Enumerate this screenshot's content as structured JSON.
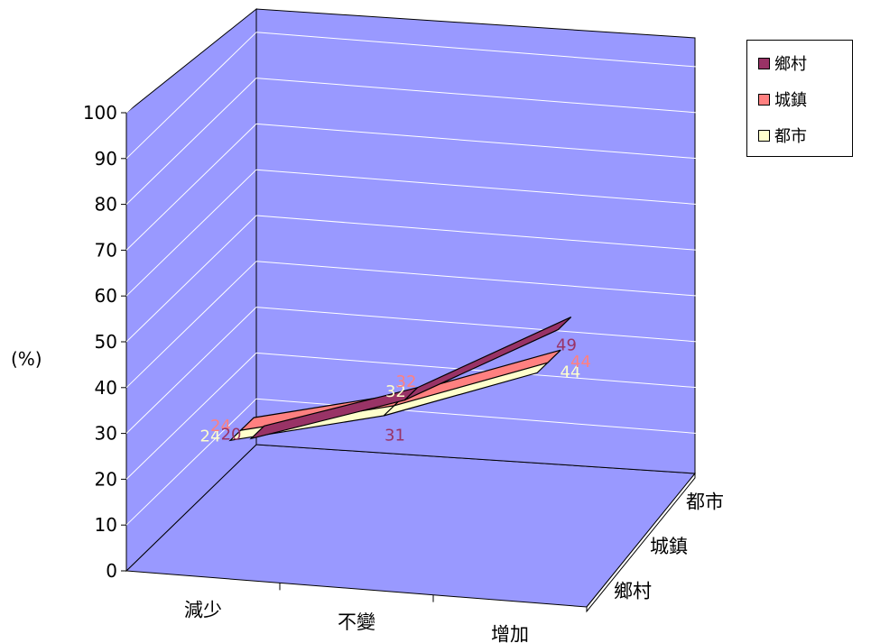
{
  "chart_data": {
    "type": "line",
    "style": "3d-ribbon",
    "categories": [
      "減少",
      "不變",
      "增加"
    ],
    "depth_categories": [
      "鄉村",
      "城鎮",
      "都市"
    ],
    "ylabel": "(%)",
    "ylim": [
      0,
      100
    ],
    "yticks": [
      "0",
      "10",
      "20",
      "30",
      "40",
      "50",
      "60",
      "70",
      "80",
      "90",
      "100"
    ],
    "grid": true,
    "legend_position": "top-right",
    "series": [
      {
        "name": "鄉村",
        "values": [
          20,
          31,
          49
        ],
        "color": "#993366"
      },
      {
        "name": "城鎮",
        "values": [
          24,
          32,
          44
        ],
        "color": "#ff8080"
      },
      {
        "name": "都市",
        "values": [
          24,
          32,
          44
        ],
        "color": "#ffffcc"
      }
    ],
    "wall_color": "#9999ff"
  }
}
